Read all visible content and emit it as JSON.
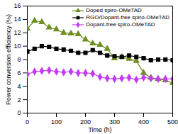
{
  "chart_data": {
    "type": "line",
    "x_label": "Time (h)",
    "y_label": "Power conversion efficiency (%)",
    "x": [
      0,
      25,
      50,
      75,
      100,
      125,
      150,
      175,
      200,
      225,
      250,
      275,
      300,
      325,
      350,
      375,
      400,
      425,
      450,
      475,
      500
    ],
    "series": [
      {
        "name": "Doped spiro-OMeTAD",
        "color": "#6f8f1f",
        "marker": "triangle",
        "values": [
          12.6,
          13.8,
          13.6,
          12.8,
          12.5,
          12.0,
          11.9,
          11.8,
          11.0,
          10.4,
          10.2,
          9.6,
          8.2,
          8.4,
          8.1,
          7.8,
          6.0,
          5.3,
          5.1,
          4.9,
          4.5
        ]
      },
      {
        "name": "RGO/Dopant-free spiro-OMeTAD",
        "color": "#000000",
        "marker": "square",
        "values": [
          9.2,
          9.6,
          10.0,
          9.9,
          9.6,
          9.5,
          9.3,
          9.0,
          9.0,
          9.4,
          9.0,
          8.6,
          8.5,
          8.4,
          8.6,
          8.4,
          8.2,
          7.9,
          8.0,
          8.0,
          7.9
        ]
      },
      {
        "name": "Dopant-free spiro-OMeTAD",
        "color": "#c23cf0",
        "marker": "diamond",
        "values": [
          5.8,
          6.2,
          6.3,
          6.4,
          6.2,
          6.1,
          6.2,
          6.0,
          6.0,
          5.9,
          5.4,
          5.2,
          5.1,
          5.2,
          5.3,
          5.0,
          5.3,
          5.2,
          5.1,
          5.1,
          5.1
        ]
      }
    ],
    "xlim": [
      0,
      500
    ],
    "xticks": [
      0,
      100,
      200,
      300,
      400,
      500
    ],
    "ylim": [
      0,
      16
    ],
    "yticks": [
      0,
      2,
      4,
      6,
      8,
      10,
      12,
      14,
      16
    ],
    "legend": "top-right"
  }
}
